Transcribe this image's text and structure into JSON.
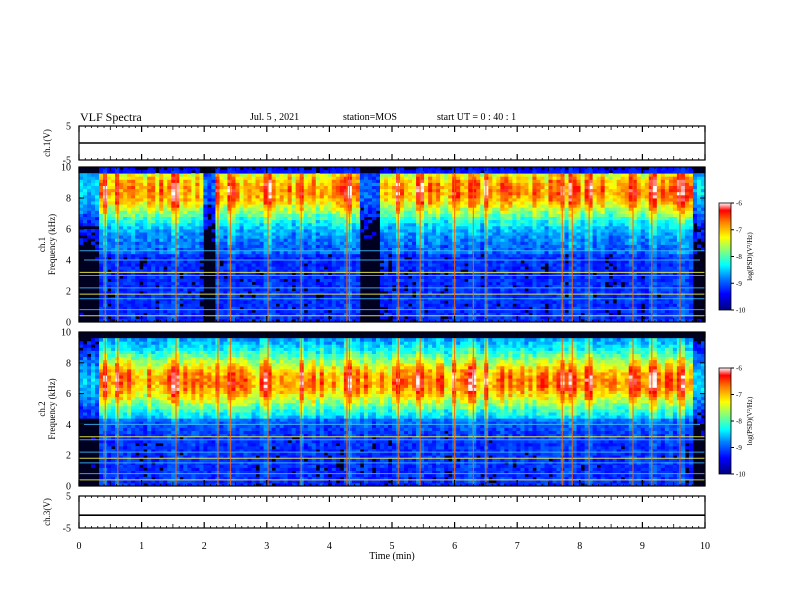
{
  "header": {
    "title": "VLF Spectra",
    "date": "Jul. 5 , 2021",
    "station": "station=MOS",
    "start": "start UT = 0 : 40 : 1"
  },
  "colors": {
    "colormap": [
      "#00007f",
      "#0000ff",
      "#0080ff",
      "#00ffff",
      "#80ff80",
      "#ffff00",
      "#ff8000",
      "#ff0000",
      "#ffffff"
    ],
    "background_low": "#000020",
    "axis": "#000000"
  },
  "chart_data": [
    {
      "type": "line",
      "panel": "ch1-waveform",
      "ylabel": "ch.1(V)",
      "ylim": [
        -5,
        5
      ],
      "yticks": [
        "5",
        "-5"
      ],
      "series": [
        {
          "values": [
            0
          ]
        }
      ],
      "grid": false
    },
    {
      "type": "heatmap",
      "panel": "ch1-spectrogram",
      "ylabel": "ch.1\nFrequency (kHz)",
      "ylim": [
        0,
        10
      ],
      "yticks": [
        "10",
        "8",
        "6",
        "4",
        "2",
        "0"
      ],
      "colorbar": {
        "label": "log(PSD)(V²/Hz)",
        "range": [
          -10,
          -6
        ],
        "ticks": [
          "-6",
          "-7",
          "-8",
          "-9",
          "-10"
        ]
      },
      "band_center_khz": 8.5,
      "dark_intervals_min": [
        [
          2.0,
          2.2
        ],
        [
          4.5,
          4.8
        ]
      ],
      "narrowband_lines_khz": [
        0.4,
        0.8,
        1.5,
        1.8,
        2.2,
        3.0,
        3.2,
        4.0,
        4.6
      ]
    },
    {
      "type": "heatmap",
      "panel": "ch2-spectrogram",
      "ylabel": "ch.2\nFrequency (kHz)",
      "ylim": [
        0,
        10
      ],
      "yticks": [
        "10",
        "8",
        "6",
        "4",
        "2",
        "0"
      ],
      "colorbar": {
        "label": "log(PSD)(V²/Hz)",
        "range": [
          -10,
          -6
        ],
        "ticks": [
          "-6",
          "-7",
          "-8",
          "-9",
          "-10"
        ]
      },
      "band_center_khz": 6.8,
      "narrowband_lines_khz": [
        0.4,
        0.8,
        1.5,
        1.8,
        2.2,
        3.0,
        3.2,
        4.0
      ]
    },
    {
      "type": "line",
      "panel": "ch3-waveform",
      "ylabel": "ch.3(V)",
      "ylim": [
        -5,
        5
      ],
      "yticks": [
        "5",
        "-5"
      ],
      "series": [
        {
          "values": [
            -1
          ]
        }
      ],
      "grid": false
    }
  ],
  "xaxis": {
    "label": "Time (min)",
    "xlim": [
      0,
      10
    ],
    "ticks": [
      "0",
      "1",
      "2",
      "3",
      "4",
      "5",
      "6",
      "7",
      "8",
      "9",
      "10"
    ]
  },
  "bright_bursts_min": [
    0.42,
    0.62,
    1.55,
    2.22,
    2.42,
    3.02,
    3.55,
    4.28,
    4.32,
    5.1,
    5.45,
    6.0,
    6.3,
    6.5,
    7.72,
    7.88,
    8.15,
    8.85,
    9.15,
    9.6
  ]
}
